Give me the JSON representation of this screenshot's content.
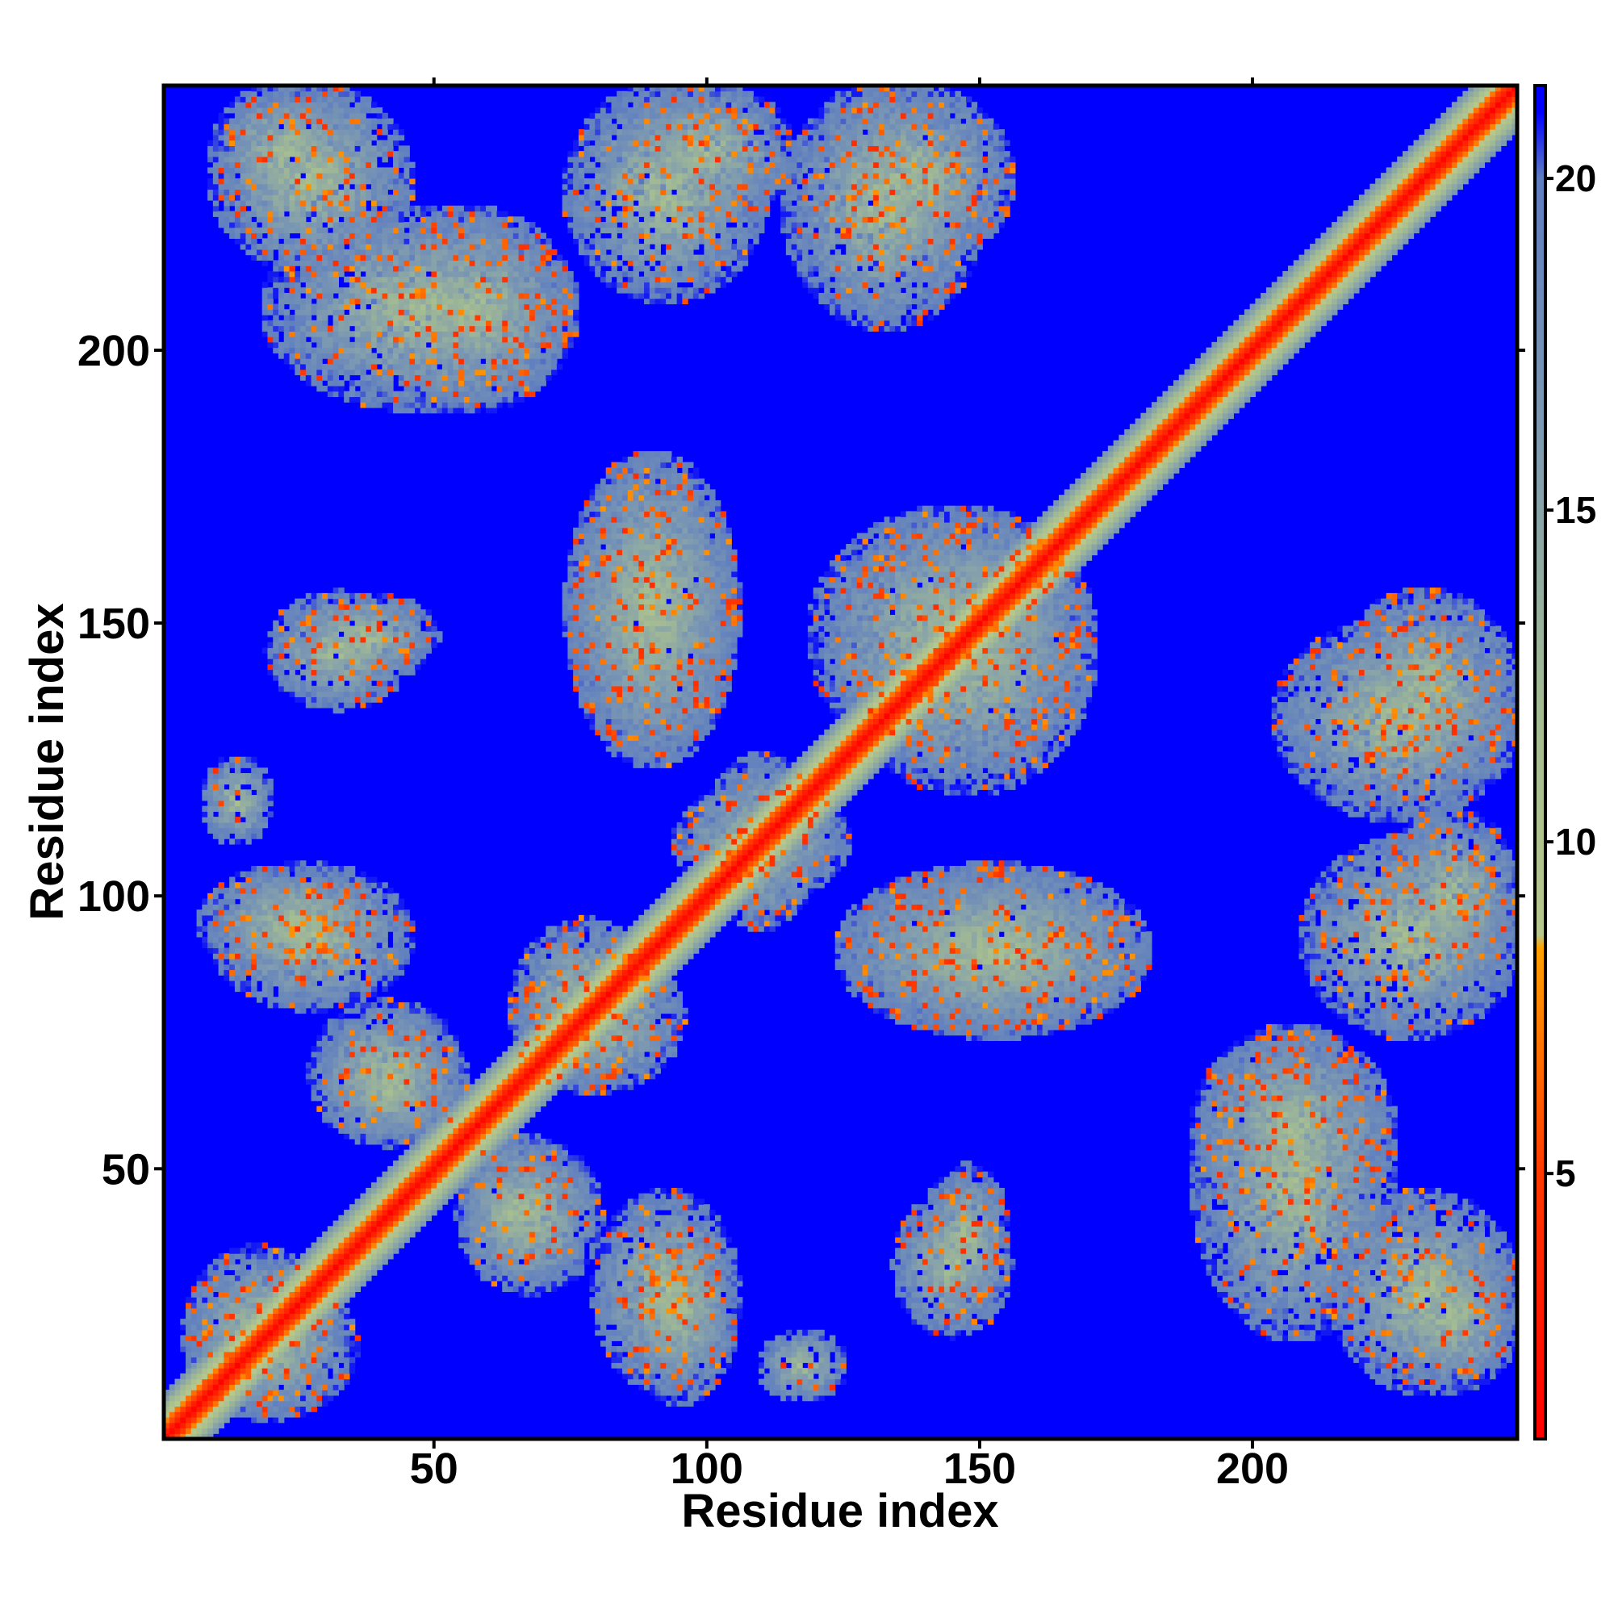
{
  "chart_data": {
    "type": "heatmap",
    "title": "",
    "xlabel": "Residue index",
    "ylabel": "Residue index",
    "n_residues": 248,
    "xlim": [
      1,
      248
    ],
    "ylim": [
      1,
      248
    ],
    "x_ticks": [
      "50",
      "100",
      "150",
      "200"
    ],
    "y_ticks": [
      "50",
      "100",
      "150",
      "200"
    ],
    "colorbar": {
      "ticks": [
        "5",
        "10",
        "15",
        "20"
      ],
      "range": [
        1,
        21.4
      ],
      "stops": [
        {
          "value": 1,
          "color": "#ff0000"
        },
        {
          "value": 5,
          "color": "#ff3a00"
        },
        {
          "value": 8.4,
          "color": "#ffa000"
        },
        {
          "value": 8.6,
          "color": "#b8c88c"
        },
        {
          "value": 12,
          "color": "#a4bc92"
        },
        {
          "value": 16,
          "color": "#7f9bb0"
        },
        {
          "value": 20,
          "color": "#5f7ec0"
        },
        {
          "value": 21,
          "color": "#0000ff"
        }
      ]
    },
    "background_value": 21.4,
    "diagonal_band": {
      "width_residues": 8
    },
    "contact_regions": [
      {
        "x": [
          10,
          35
        ],
        "y": [
          225,
          248
        ]
      },
      {
        "x": [
          20,
          75
        ],
        "y": [
          190,
          225
        ]
      },
      {
        "x": [
          75,
          110
        ],
        "y": [
          210,
          248
        ]
      },
      {
        "x": [
          115,
          150
        ],
        "y": [
          205,
          248
        ]
      },
      {
        "x": [
          20,
          45
        ],
        "y": [
          135,
          155
        ]
      },
      {
        "x": [
          75,
          105
        ],
        "y": [
          125,
          180
        ]
      },
      {
        "x": [
          125,
          170
        ],
        "y": [
          120,
          170
        ]
      },
      {
        "x": [
          8,
          20
        ],
        "y": [
          110,
          125
        ]
      },
      {
        "x": [
          8,
          40
        ],
        "y": [
          85,
          105
        ]
      },
      {
        "x": [
          100,
          120
        ],
        "y": [
          95,
          125
        ]
      },
      {
        "x": [
          125,
          180
        ],
        "y": [
          75,
          105
        ]
      },
      {
        "x": [
          28,
          55
        ],
        "y": [
          55,
          80
        ]
      },
      {
        "x": [
          65,
          90
        ],
        "y": [
          65,
          95
        ]
      },
      {
        "x": [
          55,
          75
        ],
        "y": [
          30,
          55
        ]
      },
      {
        "x": [
          80,
          105
        ],
        "y": [
          10,
          45
        ]
      },
      {
        "x": [
          140,
          155
        ],
        "y": [
          25,
          50
        ]
      },
      {
        "x": [
          5,
          30
        ],
        "y": [
          5,
          35
        ]
      },
      {
        "x": [
          190,
          225
        ],
        "y": [
          40,
          75
        ]
      },
      {
        "x": [
          215,
          248
        ],
        "y": [
          10,
          45
        ]
      },
      {
        "x": [
          215,
          248
        ],
        "y": [
          120,
          155
        ]
      },
      {
        "x": [
          225,
          248
        ],
        "y": [
          85,
          115
        ]
      }
    ]
  }
}
